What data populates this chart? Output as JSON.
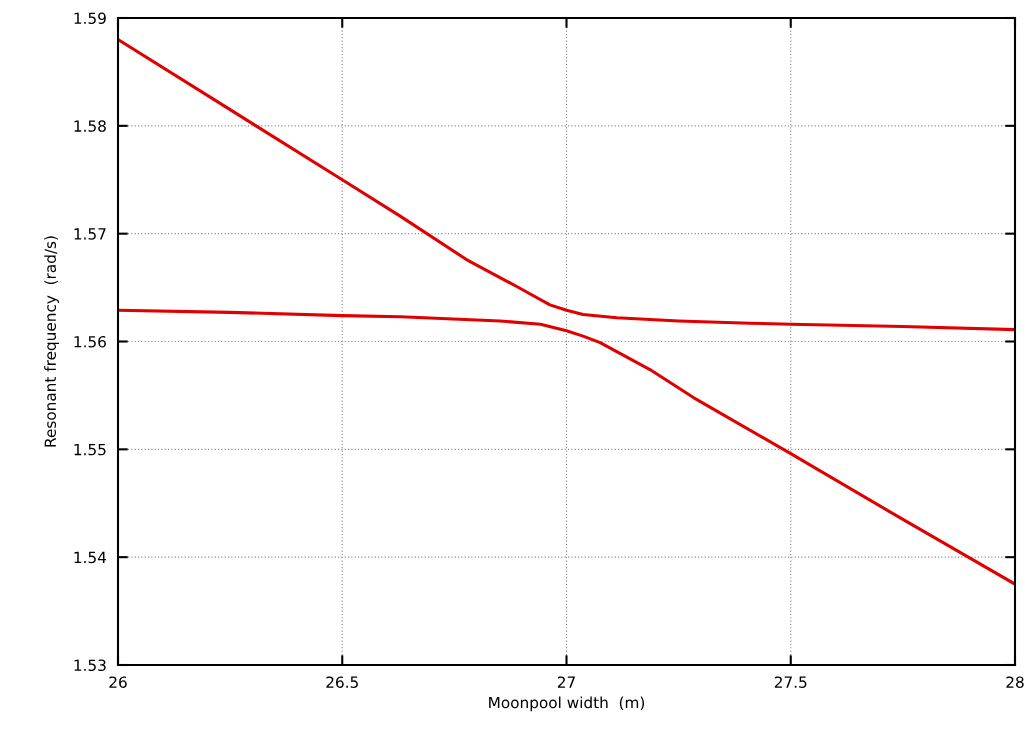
{
  "chart_data": {
    "type": "line",
    "xlabel": "Moonpool width  (m)",
    "ylabel": "Resonant frequency  (rad/s)",
    "xlim": [
      26,
      28
    ],
    "ylim": [
      1.53,
      1.59
    ],
    "xticks": [
      26,
      26.5,
      27,
      27.5,
      28
    ],
    "yticks": [
      1.53,
      1.54,
      1.55,
      1.56,
      1.57,
      1.58,
      1.59
    ],
    "grid": true,
    "line_style": "solid",
    "marker": "none",
    "series": [
      {
        "color": "#e00000",
        "x": [
          26,
          26.25,
          26.5,
          26.63,
          26.777,
          26.889,
          26.963,
          27,
          27.037,
          27.112,
          27.25,
          27.409,
          27.5,
          27.75,
          28
        ],
        "values": [
          1.588,
          1.5815,
          1.575,
          1.5716,
          1.5676,
          1.5651,
          1.5634,
          1.5629,
          1.5625,
          1.5622,
          1.5619,
          1.5617,
          1.5616,
          1.5614,
          1.5611
        ]
      },
      {
        "color": "#e00000",
        "x": [
          26,
          26.25,
          26.5,
          26.63,
          26.852,
          26.942,
          27,
          27.037,
          27.075,
          27.186,
          27.283,
          27.5,
          27.75,
          27.892,
          28
        ],
        "values": [
          1.5629,
          1.5627,
          1.5624,
          1.5623,
          1.5619,
          1.5616,
          1.561,
          1.5605,
          1.5599,
          1.5574,
          1.5548,
          1.5496,
          1.5435,
          1.5401,
          1.5375
        ]
      }
    ]
  }
}
